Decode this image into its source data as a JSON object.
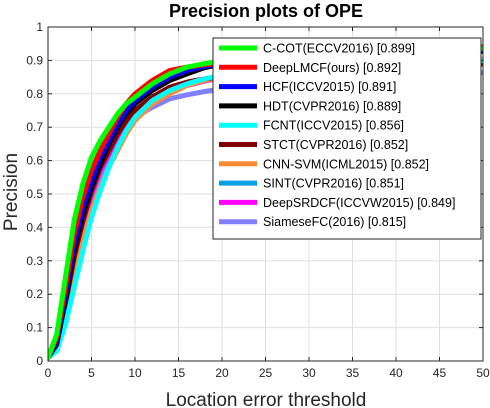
{
  "chart_data": {
    "type": "line",
    "title": "Precision plots of OPE",
    "xlabel": "Location error threshold",
    "ylabel": "Precision",
    "xlim": [
      0,
      50
    ],
    "ylim": [
      0,
      1
    ],
    "xticks": [
      "0",
      "5",
      "10",
      "15",
      "20",
      "25",
      "30",
      "35",
      "40",
      "45",
      "50"
    ],
    "yticks": [
      "0",
      "0.1",
      "0.2",
      "0.3",
      "0.4",
      "0.5",
      "0.6",
      "0.7",
      "0.8",
      "0.9",
      "1"
    ],
    "grid": true,
    "legend_position": "top-right",
    "x": [
      0,
      1,
      2,
      3,
      4,
      5,
      6,
      7,
      8,
      9,
      10,
      12,
      14,
      16,
      18,
      20,
      25,
      30,
      35,
      40,
      45,
      50
    ],
    "series": [
      {
        "name": "C-COT(ECCV2016) [0.899]",
        "color": "#00ff00",
        "values": [
          0.01,
          0.08,
          0.25,
          0.42,
          0.53,
          0.61,
          0.66,
          0.7,
          0.74,
          0.77,
          0.79,
          0.83,
          0.86,
          0.88,
          0.89,
          0.899,
          0.912,
          0.92,
          0.926,
          0.93,
          0.933,
          0.936
        ]
      },
      {
        "name": "DeepLMCF(ours) [0.892]",
        "color": "#ff0000",
        "values": [
          0.01,
          0.07,
          0.22,
          0.38,
          0.49,
          0.57,
          0.63,
          0.68,
          0.73,
          0.77,
          0.8,
          0.84,
          0.87,
          0.88,
          0.887,
          0.892,
          0.91,
          0.922,
          0.93,
          0.935,
          0.938,
          0.94
        ]
      },
      {
        "name": "HCF(ICCV2015) [0.891]",
        "color": "#0000ff",
        "values": [
          0.01,
          0.06,
          0.2,
          0.35,
          0.46,
          0.54,
          0.61,
          0.66,
          0.71,
          0.75,
          0.78,
          0.82,
          0.85,
          0.87,
          0.882,
          0.891,
          0.906,
          0.915,
          0.921,
          0.925,
          0.927,
          0.929
        ]
      },
      {
        "name": "HDT(CVPR2016) [0.889]",
        "color": "#000000",
        "values": [
          0.01,
          0.05,
          0.18,
          0.33,
          0.44,
          0.52,
          0.59,
          0.65,
          0.7,
          0.74,
          0.77,
          0.81,
          0.84,
          0.86,
          0.878,
          0.889,
          0.904,
          0.913,
          0.919,
          0.923,
          0.925,
          0.927
        ]
      },
      {
        "name": "FCNT(ICCV2015) [0.856]",
        "color": "#00ffff",
        "values": [
          0.01,
          0.03,
          0.11,
          0.22,
          0.33,
          0.43,
          0.51,
          0.58,
          0.64,
          0.69,
          0.73,
          0.78,
          0.81,
          0.83,
          0.845,
          0.856,
          0.872,
          0.882,
          0.889,
          0.894,
          0.897,
          0.899
        ]
      },
      {
        "name": "STCT(CVPR2016) [0.852]",
        "color": "#800000",
        "values": [
          0.01,
          0.05,
          0.17,
          0.31,
          0.42,
          0.51,
          0.58,
          0.63,
          0.68,
          0.72,
          0.75,
          0.79,
          0.82,
          0.835,
          0.845,
          0.852,
          0.866,
          0.875,
          0.881,
          0.885,
          0.888,
          0.89
        ]
      },
      {
        "name": "CNN-SVM(ICML2015) [0.852]",
        "color": "#ff8c32",
        "values": [
          0.01,
          0.04,
          0.14,
          0.26,
          0.36,
          0.45,
          0.52,
          0.58,
          0.63,
          0.68,
          0.72,
          0.77,
          0.8,
          0.825,
          0.84,
          0.852,
          0.87,
          0.882,
          0.89,
          0.895,
          0.899,
          0.902
        ]
      },
      {
        "name": "SINT(CVPR2016) [0.851]",
        "color": "#00a0e6",
        "values": [
          0.01,
          0.05,
          0.17,
          0.31,
          0.42,
          0.51,
          0.58,
          0.63,
          0.68,
          0.72,
          0.75,
          0.79,
          0.815,
          0.83,
          0.842,
          0.851,
          0.865,
          0.874,
          0.88,
          0.884,
          0.887,
          0.889
        ]
      },
      {
        "name": "DeepSRDCF(ICCVW2015) [0.849]",
        "color": "#ff00ff",
        "values": [
          0.01,
          0.04,
          0.16,
          0.3,
          0.41,
          0.5,
          0.57,
          0.62,
          0.67,
          0.71,
          0.74,
          0.78,
          0.81,
          0.825,
          0.838,
          0.849,
          0.864,
          0.874,
          0.88,
          0.885,
          0.888,
          0.89
        ]
      },
      {
        "name": "SiameseFC(2016) [0.815]",
        "color": "#8080ff",
        "values": [
          0.01,
          0.04,
          0.15,
          0.28,
          0.39,
          0.48,
          0.55,
          0.61,
          0.66,
          0.7,
          0.73,
          0.76,
          0.785,
          0.797,
          0.807,
          0.815,
          0.83,
          0.842,
          0.85,
          0.856,
          0.86,
          0.863
        ]
      }
    ]
  }
}
